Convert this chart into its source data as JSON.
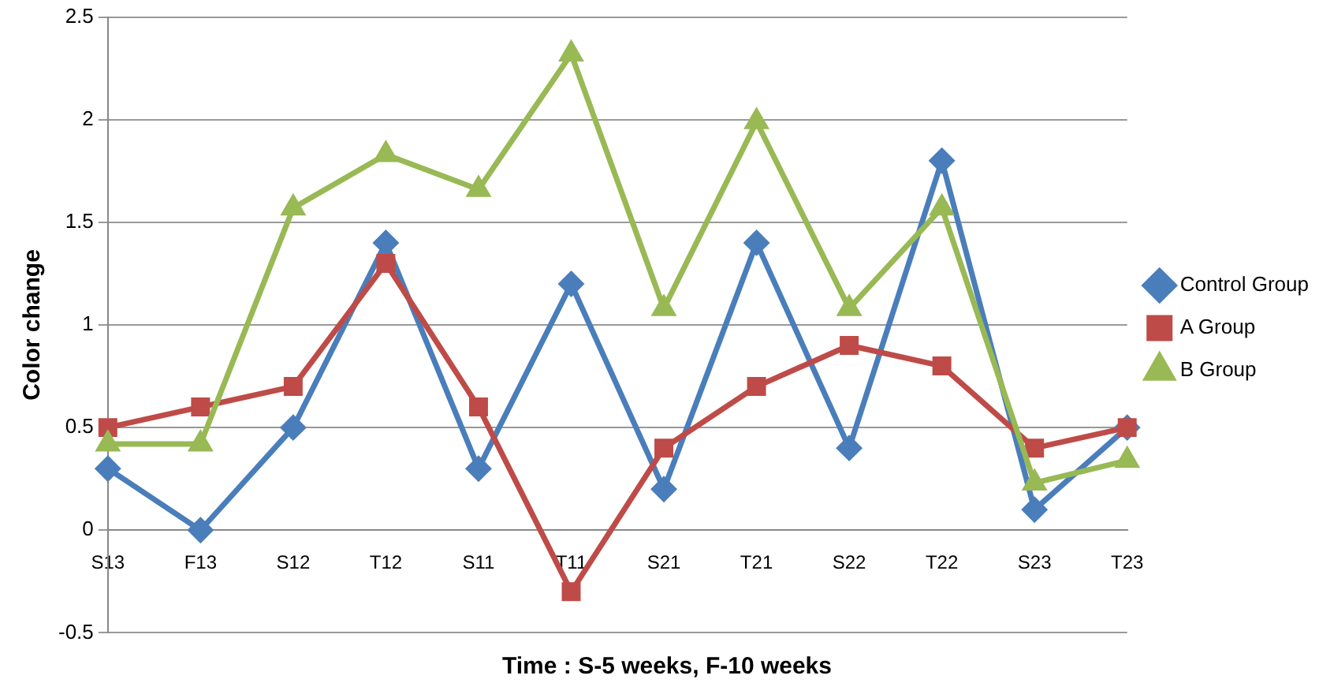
{
  "chart_data": {
    "type": "line",
    "xlabel": "Time : S-5 weeks, F-10 weeks",
    "ylabel": "Color change",
    "categories": [
      "S13",
      "F13",
      "S12",
      "T12",
      "S11",
      "T11",
      "S21",
      "T21",
      "S22",
      "T22",
      "S23",
      "T23"
    ],
    "series": [
      {
        "name": "Control Group",
        "color": "#4a7ebb",
        "marker": "diamond",
        "values": [
          0.3,
          0,
          0.5,
          1.4,
          0.3,
          1.2,
          0.2,
          1.4,
          0.4,
          1.8,
          0.1,
          0.5
        ]
      },
      {
        "name": "A Group",
        "color": "#be4b48",
        "marker": "square",
        "values": [
          0.5,
          0.6,
          0.7,
          1.3,
          0.6,
          -0.3,
          0.4,
          0.7,
          0.9,
          0.8,
          0.4,
          0.5
        ]
      },
      {
        "name": "B Group",
        "color": "#98b954",
        "marker": "triangle",
        "values": [
          0.42,
          0.42,
          1.57,
          1.83,
          1.66,
          2.32,
          1.08,
          1.99,
          1.08,
          1.57,
          0.23,
          0.34
        ]
      }
    ],
    "ylim": [
      -0.5,
      2.5
    ],
    "yticks": [
      -0.5,
      0,
      0.5,
      1,
      1.5,
      2,
      2.5
    ],
    "grid": "y",
    "legend": "right",
    "line_style": "solid"
  }
}
